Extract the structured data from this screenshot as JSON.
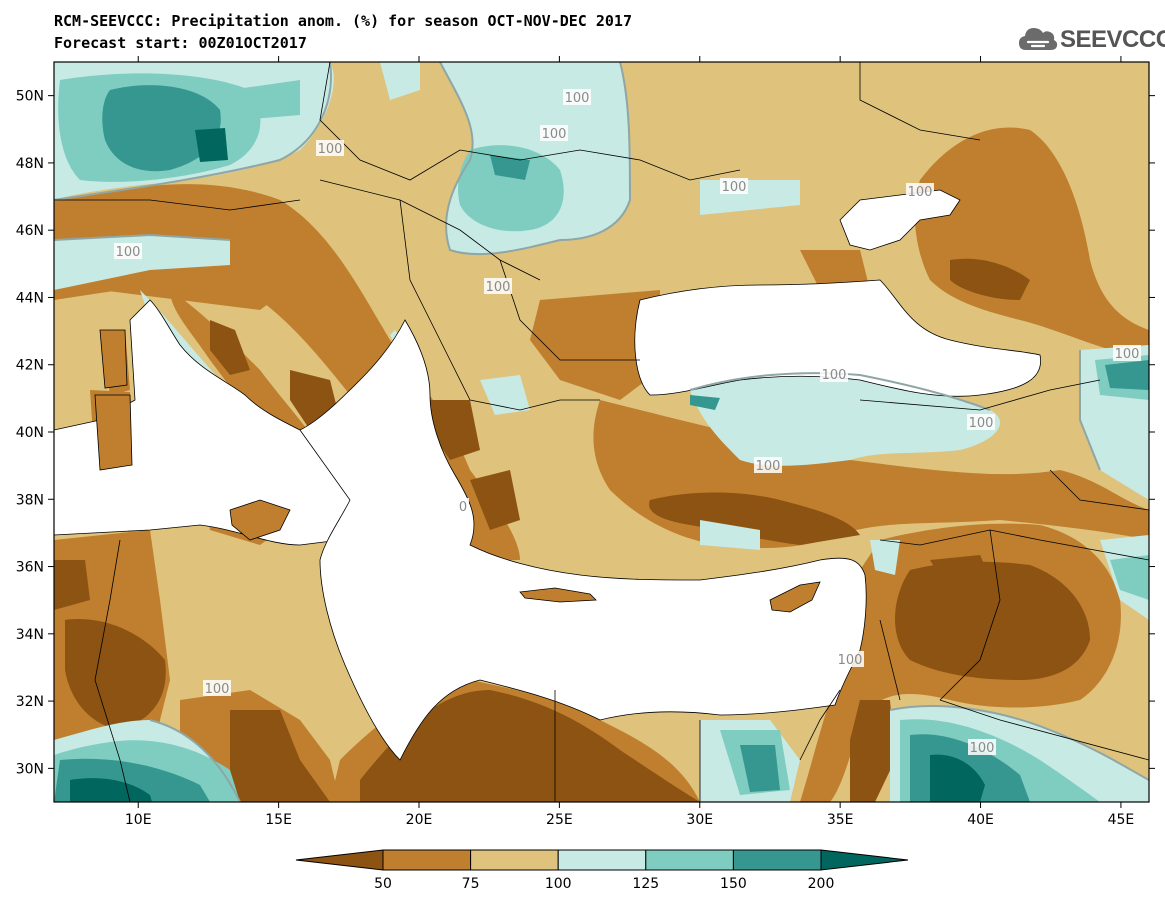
{
  "title_line1": "RCM-SEEVCCC: Precipitation anom. (%) for season OCT-NOV-DEC 2017",
  "title_line2": "Forecast start: 00Z01OCT2017",
  "logo_text": "SEEVCCC",
  "logo_icon": "cloud-icon",
  "map": {
    "lat_labels": [
      "50N",
      "48N",
      "46N",
      "44N",
      "42N",
      "40N",
      "38N",
      "36N",
      "34N",
      "32N",
      "30N"
    ],
    "lon_labels": [
      "10E",
      "15E",
      "20E",
      "25E",
      "30E",
      "35E",
      "40E",
      "45E"
    ],
    "lat_range": [
      29,
      51
    ],
    "lon_range": [
      7,
      46
    ],
    "contour_labels": [
      "100",
      "100",
      "100",
      "100",
      "100",
      "100",
      "100",
      "100",
      "100",
      "100",
      "100",
      "100",
      "100",
      "0",
      "100"
    ]
  },
  "legend": {
    "breaks": [
      "50",
      "75",
      "100",
      "125",
      "150",
      "200"
    ],
    "colors": [
      "#8c5312",
      "#bf7f2e",
      "#dfc27c",
      "#c7eae5",
      "#7fcdc0",
      "#35978f",
      "#01665e"
    ]
  }
}
